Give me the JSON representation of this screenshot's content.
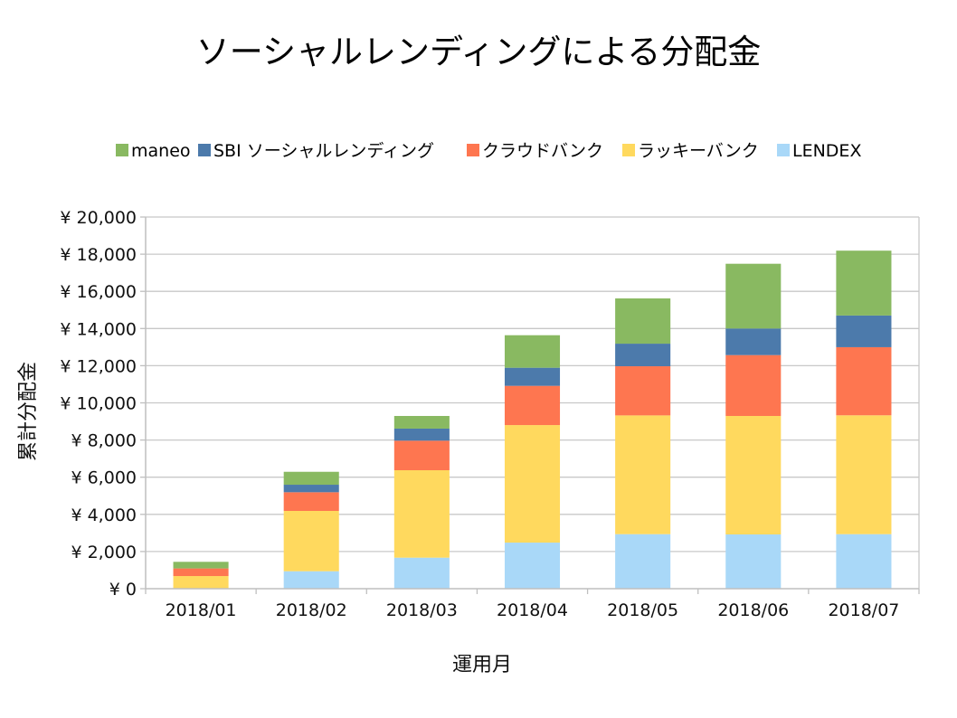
{
  "chart_data": {
    "type": "bar",
    "stacked": true,
    "title": "ソーシャルレンディングによる分配金",
    "xlabel": "運用月",
    "ylabel": "累計分配金",
    "categories": [
      "2018/01",
      "2018/02",
      "2018/03",
      "2018/04",
      "2018/05",
      "2018/06",
      "2018/07"
    ],
    "ylim": [
      0,
      20000
    ],
    "yticks": [
      0,
      2000,
      4000,
      6000,
      8000,
      10000,
      12000,
      14000,
      16000,
      18000,
      20000
    ],
    "ytick_labels": [
      "¥ 0",
      "¥ 2,000",
      "¥ 4,000",
      "¥ 6,000",
      "¥ 8,000",
      "¥ 10,000",
      "¥ 12,000",
      "¥ 14,000",
      "¥ 16,000",
      "¥ 18,000",
      "¥ 20,000"
    ],
    "grid": true,
    "legend_position": "top",
    "legend_order": [
      "maneo",
      "SBI ソーシャルレンディング",
      "クラウドバンク",
      "ラッキーバンク",
      "LENDEX"
    ],
    "series": [
      {
        "name": "LENDEX",
        "color": "#a9d8f8",
        "values": [
          0,
          940,
          1670,
          2480,
          2935,
          2920,
          2935
        ]
      },
      {
        "name": "ラッキーバンク",
        "color": "#ffd95e",
        "values": [
          680,
          3245,
          4705,
          6325,
          6390,
          6375,
          6395
        ]
      },
      {
        "name": "クラウドバンク",
        "color": "#fe7650",
        "values": [
          410,
          1005,
          1590,
          2110,
          2645,
          3275,
          3665
        ]
      },
      {
        "name": "SBI ソーシャルレンディング",
        "color": "#4c7aab",
        "values": [
          0,
          405,
          650,
          975,
          1215,
          1430,
          1705
        ]
      },
      {
        "name": "maneo",
        "color": "#89b961",
        "values": [
          355,
          695,
          680,
          1750,
          2435,
          3485,
          3490
        ]
      }
    ]
  }
}
